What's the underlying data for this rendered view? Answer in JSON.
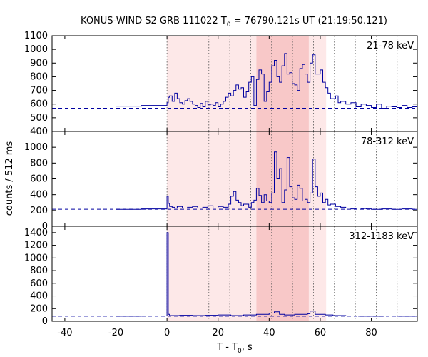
{
  "chart_data": {
    "type": "line",
    "title": {
      "prefix": "KONUS-WIND S2 GRB 111022 T",
      "sub": "0",
      "suffix": " = 76790.121s UT (21:19:50.121)"
    },
    "xlabel": {
      "prefix": "T - T",
      "sub": "0",
      "suffix": ", s"
    },
    "ylabel": "counts / 512 ms",
    "xlim": [
      -45,
      98
    ],
    "x_ticks": [
      -40,
      -20,
      0,
      20,
      40,
      60,
      80
    ],
    "vertical_markers": [
      0,
      8.192,
      16.384,
      24.576,
      32.768,
      40.96,
      49.152,
      57.344,
      65.536,
      73.728,
      81.92,
      90.112
    ],
    "shaded_intervals": [
      {
        "start": 0,
        "end": 62.3,
        "color": "#fde8e8"
      },
      {
        "start": 35.0,
        "end": 55.5,
        "color": "#f8c8c8"
      }
    ],
    "line_color": "#0000a0",
    "background_color": "#cc0000",
    "panels": [
      {
        "band": "21-78 keV",
        "ylim": [
          400,
          1100
        ],
        "y_ticks": [
          400,
          500,
          600,
          700,
          800,
          900,
          1000,
          1100
        ],
        "background": 570,
        "x": [
          -20,
          -10,
          0,
          0.5,
          1,
          2,
          3,
          4,
          5,
          6,
          7,
          8,
          9,
          10,
          11,
          12,
          13,
          14,
          15,
          16,
          17,
          18,
          19,
          20,
          21,
          22,
          23,
          24,
          25,
          26,
          27,
          28,
          29,
          30,
          31,
          32,
          33,
          34,
          35,
          36,
          37,
          38,
          39,
          40,
          41,
          42,
          43,
          44,
          45,
          46,
          47,
          48,
          49,
          50,
          51,
          52,
          53,
          54,
          55,
          56,
          57,
          58,
          59,
          60,
          61,
          62,
          63,
          64,
          65,
          66,
          67,
          68,
          70,
          72,
          74,
          76,
          78,
          80,
          82,
          84,
          86,
          88,
          90,
          92,
          94,
          96,
          98
        ],
        "y": [
          585,
          590,
          610,
          650,
          660,
          620,
          680,
          640,
          610,
          600,
          625,
          640,
          620,
          600,
          590,
          575,
          605,
          580,
          620,
          595,
          600,
          590,
          610,
          580,
          600,
          620,
          650,
          680,
          660,
          700,
          740,
          710,
          720,
          650,
          690,
          760,
          800,
          590,
          780,
          850,
          820,
          620,
          690,
          760,
          880,
          920,
          800,
          760,
          880,
          970,
          820,
          830,
          750,
          740,
          700,
          860,
          890,
          820,
          760,
          900,
          960,
          820,
          820,
          850,
          760,
          720,
          680,
          640,
          640,
          660,
          610,
          620,
          600,
          610,
          580,
          600,
          590,
          575,
          600,
          570,
          585,
          580,
          575,
          590,
          575,
          580,
          575
        ]
      },
      {
        "band": "78-312 keV",
        "ylim": [
          0,
          1200
        ],
        "y_ticks": [
          0,
          200,
          400,
          600,
          800,
          1000
        ],
        "background": 215,
        "x": [
          -20,
          -10,
          0,
          0.5,
          1,
          2,
          3,
          4,
          6,
          8,
          10,
          12,
          14,
          16,
          18,
          20,
          22,
          24,
          25,
          26,
          27,
          28,
          29,
          30,
          32,
          33,
          34,
          35,
          36,
          37,
          38,
          39,
          40,
          41,
          42,
          43,
          44,
          45,
          46,
          47,
          48,
          49,
          50,
          51,
          52,
          53,
          54,
          55,
          56,
          57,
          58,
          59,
          60,
          61,
          62,
          63,
          64,
          66,
          68,
          70,
          72,
          74,
          76,
          78,
          80,
          84,
          88,
          92,
          96,
          98
        ],
        "y": [
          215,
          220,
          380,
          290,
          250,
          240,
          230,
          250,
          230,
          240,
          250,
          230,
          240,
          260,
          230,
          250,
          240,
          280,
          380,
          440,
          330,
          300,
          260,
          280,
          240,
          300,
          330,
          480,
          390,
          300,
          400,
          320,
          300,
          420,
          940,
          600,
          730,
          300,
          460,
          870,
          500,
          360,
          340,
          520,
          480,
          320,
          340,
          300,
          420,
          850,
          500,
          380,
          420,
          300,
          340,
          270,
          280,
          250,
          240,
          230,
          220,
          230,
          225,
          220,
          215,
          220,
          215,
          220,
          215,
          215
        ]
      },
      {
        "band": "312-1183 keV",
        "ylim": [
          0,
          1500
        ],
        "y_ticks": [
          0,
          200,
          400,
          600,
          800,
          1000,
          1200,
          1400
        ],
        "background": 80,
        "x": [
          -20,
          -10,
          0,
          0.5,
          1,
          5,
          10,
          15,
          20,
          25,
          30,
          35,
          40,
          42,
          44,
          46,
          50,
          55,
          56,
          58,
          60,
          62,
          65,
          70,
          75,
          80,
          85,
          90,
          95,
          98
        ],
        "y": [
          80,
          85,
          1400,
          110,
          90,
          95,
          90,
          95,
          100,
          90,
          100,
          110,
          130,
          150,
          110,
          100,
          110,
          120,
          160,
          110,
          110,
          100,
          90,
          85,
          80,
          80,
          85,
          80,
          80,
          80
        ]
      }
    ]
  }
}
